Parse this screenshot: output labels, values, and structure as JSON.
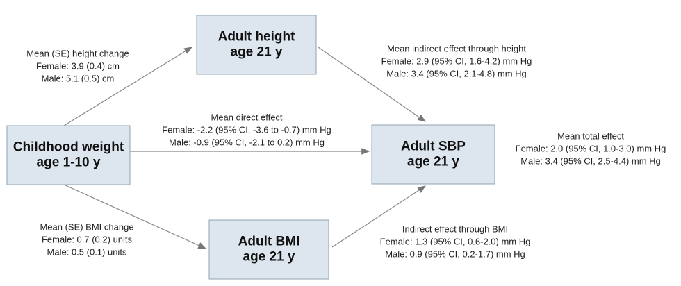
{
  "nodes": [
    {
      "lines": [
        "Adult height",
        "age 21 y"
      ]
    },
    {
      "lines": [
        "Childhood weight",
        "age 1-10 y"
      ]
    },
    {
      "lines": [
        "Adult SBP",
        "age 21 y"
      ]
    },
    {
      "lines": [
        "Adult BMI",
        "age 21 y"
      ]
    }
  ],
  "labels": [
    {
      "lines": [
        "Mean (SE) height change",
        "Female: 3.9 (0.4) cm",
        "Male: 5.1 (0.5) cm"
      ]
    },
    {
      "lines": [
        "Mean indirect effect through height",
        "Female: 2.9 (95% CI, 1.6-4.2) mm Hg",
        "Male: 3.4 (95% CI, 2.1-4.8) mm Hg"
      ]
    },
    {
      "lines": [
        "Mean direct effect",
        "Female: -2.2 (95% CI, -3.6 to -0.7) mm Hg",
        "Male: -0.9 (95% CI, -2.1 to 0.2) mm Hg"
      ]
    },
    {
      "lines": [
        "Mean total effect",
        "Female: 2.0 (95% CI, 1.0-3.0) mm Hg",
        "Male: 3.4 (95% CI, 2.5-4.4) mm Hg"
      ]
    },
    {
      "lines": [
        "Mean (SE) BMI change",
        "Female: 0.7 (0.2) units",
        "Male: 0.5 (0.1) units"
      ]
    },
    {
      "lines": [
        "Indirect effect through BMI",
        "Female: 1.3 (95% CI, 0.6-2.0) mm Hg",
        "Male: 0.9 (95% CI, 0.2-1.7) mm Hg"
      ]
    }
  ]
}
